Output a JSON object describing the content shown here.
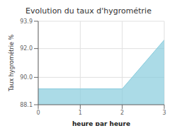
{
  "chart_data": {
    "type": "area",
    "title": "Evolution du taux d'hygrométrie",
    "xlabel": "heure par heure",
    "ylabel": "Taux hygrométrie %",
    "x": [
      0,
      1,
      2,
      3
    ],
    "values": [
      89.2,
      89.2,
      89.2,
      92.6
    ],
    "color": "#88ccdd",
    "xlim": [
      0,
      3
    ],
    "ylim": [
      88.1,
      93.9
    ],
    "xticks": [
      0,
      1,
      2,
      3
    ],
    "yticks": [
      88.1,
      {
        "value": 90,
        "label": "90.0"
      },
      {
        "value": 92,
        "label": "92.0"
      },
      93.9
    ],
    "grid": true
  }
}
